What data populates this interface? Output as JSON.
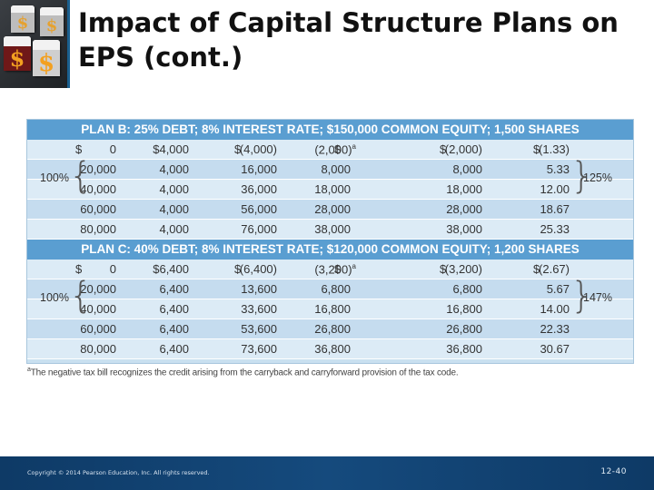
{
  "slide": {
    "title": "Impact of Capital Structure Plans on EPS (cont.)",
    "footnote_mark": "a",
    "footnote": "The negative tax bill recognizes the credit arising from the carryback and carryforward provision of the tax code.",
    "copyright": "Copyright © 2014 Pearson Education, Inc. All rights reserved.",
    "page_number": "12-40"
  },
  "plan_b": {
    "header": "PLAN B: 25% DEBT; 8% INTEREST RATE; $150,000 COMMON EQUITY; 1,500 SHARES",
    "left_brace_label": "100%",
    "right_brace_label": "125%",
    "rows": [
      {
        "ebit": "0",
        "interest": "$4,000",
        "ebt": "(4,000)",
        "tax": "(2,000)",
        "tax_note": "a",
        "net": "(2,000)",
        "eps": "(1.33)"
      },
      {
        "ebit": "20,000",
        "interest": "4,000",
        "ebt": "16,000",
        "tax": "8,000",
        "tax_note": "",
        "net": "8,000",
        "eps": "5.33"
      },
      {
        "ebit": "40,000",
        "interest": "4,000",
        "ebt": "36,000",
        "tax": "18,000",
        "tax_note": "",
        "net": "18,000",
        "eps": "12.00"
      },
      {
        "ebit": "60,000",
        "interest": "4,000",
        "ebt": "56,000",
        "tax": "28,000",
        "tax_note": "",
        "net": "28,000",
        "eps": "18.67"
      },
      {
        "ebit": "80,000",
        "interest": "4,000",
        "ebt": "76,000",
        "tax": "38,000",
        "tax_note": "",
        "net": "38,000",
        "eps": "25.33"
      }
    ]
  },
  "plan_c": {
    "header": "PLAN C: 40% DEBT; 8% INTEREST RATE; $120,000 COMMON EQUITY; 1,200 SHARES",
    "left_brace_label": "100%",
    "right_brace_label": "147%",
    "rows": [
      {
        "ebit": "0",
        "interest": "$6,400",
        "ebt": "(6,400)",
        "tax": "(3,200)",
        "tax_note": "a",
        "net": "(3,200)",
        "eps": "(2.67)"
      },
      {
        "ebit": "20,000",
        "interest": "6,400",
        "ebt": "13,600",
        "tax": "6,800",
        "tax_note": "",
        "net": "6,800",
        "eps": "5.67"
      },
      {
        "ebit": "40,000",
        "interest": "6,400",
        "ebt": "33,600",
        "tax": "16,800",
        "tax_note": "",
        "net": "16,800",
        "eps": "14.00"
      },
      {
        "ebit": "60,000",
        "interest": "6,400",
        "ebt": "53,600",
        "tax": "26,800",
        "tax_note": "",
        "net": "26,800",
        "eps": "22.33"
      },
      {
        "ebit": "80,000",
        "interest": "6,400",
        "ebt": "73,600",
        "tax": "36,800",
        "tax_note": "",
        "net": "36,800",
        "eps": "30.67"
      }
    ]
  },
  "currency_symbol": "$",
  "logo_glyphs": [
    "$",
    "$",
    "$",
    "$"
  ]
}
